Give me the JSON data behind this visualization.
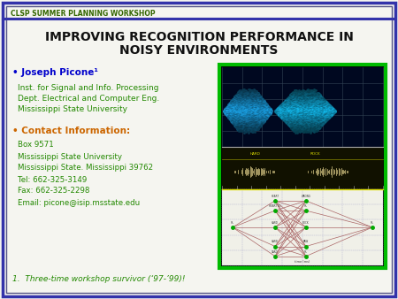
{
  "title_line1": "IMPROVING RECOGNITION PERFORMANCE IN",
  "title_line2": "NOISY ENVIRONMENTS",
  "header_text": "CLSP SUMMER PLANNING WORKSHOP",
  "bullet1": "• Joseph Picone¹",
  "bullet1_sub": [
    "Inst. for Signal and Info. Processing",
    "Dept. Electrical and Computer Eng.",
    "Mississippi State University"
  ],
  "bullet2": "• Contact Information:",
  "bullet2_sub": [
    "Box 9571",
    "Mississippi State University",
    "Mississippi State. Mississippi 39762",
    "Tel: 662-325-3149",
    "Fax: 662-325-2298",
    "Email: picone@isip.msstate.edu"
  ],
  "footnote": "1.  Three-time workshop survivor (‘97-’99)!",
  "outer_border_color": "#3333aa",
  "inner_border_color": "#555588",
  "header_color": "#336600",
  "title_color": "#111111",
  "bullet1_color": "#0000cc",
  "bullet2_color": "#cc6600",
  "sub_text_color": "#228800",
  "footnote_color": "#228800",
  "bg_color": "#f5f5f0",
  "image_border_color": "#00bb00"
}
